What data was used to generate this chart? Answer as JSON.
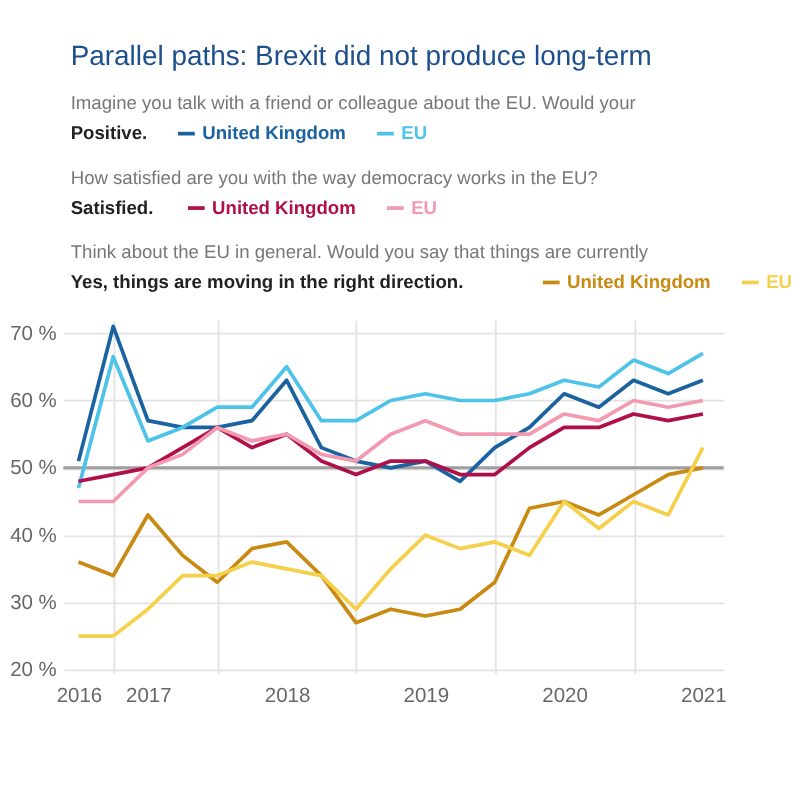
{
  "chart_data": {
    "type": "line",
    "title": "Parallel paths: Brexit did not produce long-term",
    "annotations": [
      "Imagine you talk with a friend or colleague about the EU. Would your",
      "Positive.",
      "How satisfied are you with the way democracy works in the EU?",
      "Satisfied.",
      "Think about the EU in general. Would you say that things are currently",
      "Yes, things are moving in the right direction."
    ],
    "x": [
      2016.5,
      2016.75,
      2017,
      2017.25,
      2017.5,
      2017.75,
      2018,
      2018.25,
      2018.5,
      2018.75,
      2019,
      2019.25,
      2019.5,
      2019.75,
      2020,
      2020.25,
      2020.5,
      2020.75,
      2021
    ],
    "series": [
      {
        "name": "United Kingdom",
        "color": "#1a62a0",
        "values": [
          51,
          71,
          57,
          56,
          56,
          57,
          63,
          53,
          51,
          50,
          51,
          48,
          53,
          56,
          61,
          59,
          63,
          61,
          63
        ]
      },
      {
        "name": "EU",
        "color": "#4dc3ea",
        "values": [
          47,
          66.5,
          54,
          56,
          59,
          59,
          65,
          57,
          57,
          60,
          61,
          60,
          60,
          61,
          63,
          62,
          66,
          64,
          67
        ]
      },
      {
        "name": "United Kingdom",
        "color": "#b0104a",
        "values": [
          48,
          49,
          50,
          53,
          56,
          53,
          55,
          51,
          49,
          51,
          51,
          49,
          49,
          53,
          56,
          56,
          58,
          57,
          58
        ]
      },
      {
        "name": "EU",
        "color": "#f29bb0",
        "values": [
          45,
          45,
          50,
          52,
          56,
          54,
          55,
          52,
          51,
          55,
          57,
          55,
          55,
          55,
          58,
          57,
          60,
          59,
          60
        ]
      },
      {
        "name": "United Kingdom",
        "color": "#c98a12",
        "values": [
          36,
          34,
          43,
          37,
          33,
          38,
          39,
          34,
          27,
          29,
          28,
          29,
          33,
          44,
          45,
          43,
          46,
          49,
          50
        ]
      },
      {
        "name": "EU",
        "color": "#f5d04a",
        "values": [
          25,
          25,
          29,
          34,
          34,
          36,
          35,
          34,
          29,
          35,
          40,
          38,
          39,
          37,
          45,
          41,
          45,
          43,
          53
        ]
      }
    ],
    "xlim": [
      2016.39,
      2021.15
    ],
    "xticks": [
      {
        "value": 2016.5,
        "label": "2016"
      },
      {
        "value": 2016.75,
        "label": null
      },
      2017,
      {
        "value": 2017.5,
        "label": null
      },
      2018,
      {
        "value": 2018.5,
        "label": null
      },
      2019,
      {
        "value": 2019.5,
        "label": null
      },
      2020,
      {
        "value": 2020.5,
        "label": null
      },
      2021
    ],
    "ylim": [
      19.5,
      72
    ],
    "yticks": [
      {
        "value": 20,
        "label": "20 %"
      },
      {
        "value": 30,
        "label": "30 %"
      },
      {
        "value": 40,
        "label": "40 %"
      },
      {
        "value": 50,
        "label": "50 %"
      },
      {
        "value": 60,
        "label": "60 %"
      },
      {
        "value": 70,
        "label": "70 %"
      }
    ],
    "ref_lines": [
      {
        "axis": "y",
        "value": 50,
        "color": "#9e9e9e"
      }
    ],
    "grid": true,
    "legend": "top"
  }
}
